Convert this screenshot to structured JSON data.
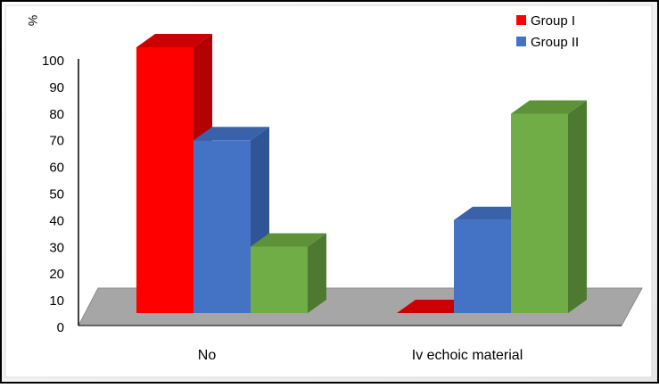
{
  "chart_data": {
    "type": "bar",
    "style": "3d-clustered-column",
    "title": "",
    "xlabel": "",
    "ylabel": "%",
    "ylim": [
      0,
      100
    ],
    "yticks": [
      0,
      10,
      20,
      30,
      40,
      50,
      60,
      70,
      80,
      90,
      100
    ],
    "grid": false,
    "legend": "top-right",
    "categories": [
      "No",
      "Iv echoic material"
    ],
    "series": [
      {
        "name": "Group I",
        "values": [
          100,
          0
        ],
        "color": "#ff0000",
        "side_color": "#b30000",
        "top_color": "#cc0000"
      },
      {
        "name": "Group II",
        "values": [
          65,
          35
        ],
        "color": "#4472c4",
        "side_color": "#2f5596",
        "top_color": "#3a62ab"
      },
      {
        "name": "",
        "values": [
          25,
          75
        ],
        "color": "#70ad47",
        "side_color": "#4d7a30",
        "top_color": "#5e9239"
      }
    ],
    "floor_color": "#a6a6a6"
  }
}
